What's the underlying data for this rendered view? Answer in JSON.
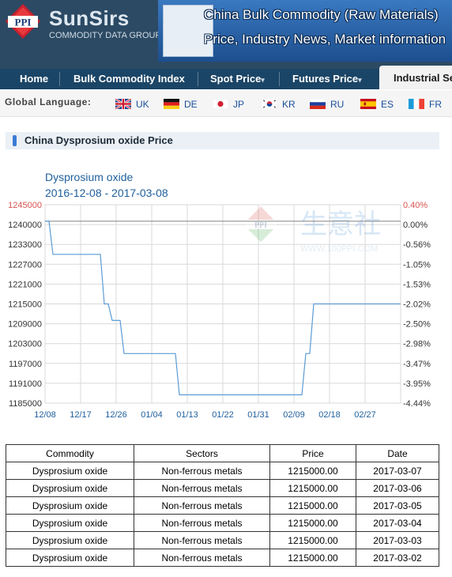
{
  "header": {
    "logo_text": "PPI",
    "brand": "SunSirs",
    "brand_sub": "COMMODITY DATA GROUP",
    "banner_lines": [
      "China Bulk Commodity (Raw Materials)",
      "Price, Industry News, Market information"
    ]
  },
  "nav": {
    "items": [
      {
        "label": "Home",
        "caret": ""
      },
      {
        "label": "Bulk Commodity Index",
        "caret": ""
      },
      {
        "label": "Spot Price",
        "caret": "▾"
      },
      {
        "label": "Futures Price",
        "caret": "▾"
      }
    ],
    "active": "Industrial Se"
  },
  "languages": {
    "title": "Global Language:",
    "items": [
      {
        "code": "UK",
        "flag": "uk-flag-icon"
      },
      {
        "code": "DE",
        "flag": "germany-flag-icon"
      },
      {
        "code": "JP",
        "flag": "japan-flag-icon"
      },
      {
        "code": "KR",
        "flag": "korea-flag-icon"
      },
      {
        "code": "RU",
        "flag": "russia-flag-icon"
      },
      {
        "code": "ES",
        "flag": "spain-flag-icon"
      },
      {
        "code": "FR",
        "flag": "france-flag-icon"
      }
    ]
  },
  "section": {
    "title": "China Dysprosium oxide Price"
  },
  "watermark": {
    "brand_cn": "生意社",
    "url": "WWW.100PPI.COM"
  },
  "chart_data": {
    "type": "line",
    "title": "Dysprosium oxide",
    "subtitle": "2016-12-08 - 2017-03-08",
    "x_ticks": [
      "12/08",
      "12/17",
      "12/26",
      "01/04",
      "01/13",
      "01/22",
      "01/31",
      "02/09",
      "02/18",
      "02/27"
    ],
    "y_ticks_left": [
      "1245000",
      "1240000",
      "1233000",
      "1227000",
      "1221000",
      "1215000",
      "1209000",
      "1203000",
      "1197000",
      "1191000",
      "1185000"
    ],
    "y_ticks_right": [
      "0.40%",
      "0.00%",
      "-0.56%",
      "-1.05%",
      "-1.53%",
      "-2.02%",
      "-2.50%",
      "-2.98%",
      "-3.47%",
      "-3.95%",
      "-4.44%"
    ],
    "ylim": [
      1185000,
      1245000
    ],
    "reference_value": 1240000,
    "grid": true,
    "colors": {
      "line": "#5b9bd5",
      "axis_text": "#1f5f9c",
      "top_tick": "#d9534f",
      "reference": "#808080",
      "grid": "#d9d9d9"
    },
    "series": [
      {
        "x": [
          "2016-12-08",
          "2016-12-09",
          "2016-12-10",
          "2016-12-11",
          "2016-12-12",
          "2016-12-13",
          "2016-12-14",
          "2016-12-15",
          "2016-12-16",
          "2016-12-17",
          "2016-12-18",
          "2016-12-19",
          "2016-12-20",
          "2016-12-21",
          "2016-12-22",
          "2016-12-23",
          "2016-12-24",
          "2016-12-25",
          "2016-12-26",
          "2016-12-27",
          "2016-12-28",
          "2016-12-29",
          "2016-12-30",
          "2016-12-31",
          "2017-01-01",
          "2017-01-02",
          "2017-01-03",
          "2017-01-04",
          "2017-01-05",
          "2017-01-06",
          "2017-01-07",
          "2017-01-08",
          "2017-01-09",
          "2017-01-10",
          "2017-01-11",
          "2017-01-12",
          "2017-01-13",
          "2017-01-14",
          "2017-01-15",
          "2017-01-16",
          "2017-01-17",
          "2017-01-18",
          "2017-01-19",
          "2017-01-20",
          "2017-01-21",
          "2017-01-22",
          "2017-01-23",
          "2017-01-24",
          "2017-01-25",
          "2017-01-26",
          "2017-01-27",
          "2017-01-28",
          "2017-01-29",
          "2017-01-30",
          "2017-01-31",
          "2017-02-01",
          "2017-02-02",
          "2017-02-03",
          "2017-02-04",
          "2017-02-05",
          "2017-02-06",
          "2017-02-07",
          "2017-02-08",
          "2017-02-09",
          "2017-02-10",
          "2017-02-11",
          "2017-02-12",
          "2017-02-13",
          "2017-02-14",
          "2017-02-15",
          "2017-02-16",
          "2017-02-17",
          "2017-02-18",
          "2017-02-19",
          "2017-02-20",
          "2017-02-21",
          "2017-02-22",
          "2017-02-23",
          "2017-02-24",
          "2017-02-25",
          "2017-02-26",
          "2017-02-27",
          "2017-02-28",
          "2017-03-01",
          "2017-03-02",
          "2017-03-03",
          "2017-03-04",
          "2017-03-05",
          "2017-03-06",
          "2017-03-07",
          "2017-03-08"
        ],
        "values": [
          1240000,
          1240000,
          1230000,
          1230000,
          1230000,
          1230000,
          1230000,
          1230000,
          1230000,
          1230000,
          1230000,
          1230000,
          1230000,
          1230000,
          1230000,
          1215000,
          1215000,
          1210000,
          1210000,
          1210000,
          1200000,
          1200000,
          1200000,
          1200000,
          1200000,
          1200000,
          1200000,
          1200000,
          1200000,
          1200000,
          1200000,
          1200000,
          1200000,
          1200000,
          1187500,
          1187500,
          1187500,
          1187500,
          1187500,
          1187500,
          1187500,
          1187500,
          1187500,
          1187500,
          1187500,
          1187500,
          1187500,
          1187500,
          1187500,
          1187500,
          1187500,
          1187500,
          1187500,
          1187500,
          1187500,
          1187500,
          1187500,
          1187500,
          1187500,
          1187500,
          1187500,
          1187500,
          1187500,
          1187500,
          1187500,
          1187500,
          1200000,
          1200000,
          1215000,
          1215000,
          1215000,
          1215000,
          1215000,
          1215000,
          1215000,
          1215000,
          1215000,
          1215000,
          1215000,
          1215000,
          1215000,
          1215000,
          1215000,
          1215000,
          1215000,
          1215000,
          1215000,
          1215000,
          1215000,
          1215000,
          1215000
        ]
      }
    ]
  },
  "table": {
    "headers": [
      "Commodity",
      "Sectors",
      "Price",
      "Date"
    ],
    "rows": [
      [
        "Dysprosium oxide",
        "Non-ferrous metals",
        "1215000.00",
        "2017-03-07"
      ],
      [
        "Dysprosium oxide",
        "Non-ferrous metals",
        "1215000.00",
        "2017-03-06"
      ],
      [
        "Dysprosium oxide",
        "Non-ferrous metals",
        "1215000.00",
        "2017-03-05"
      ],
      [
        "Dysprosium oxide",
        "Non-ferrous metals",
        "1215000.00",
        "2017-03-04"
      ],
      [
        "Dysprosium oxide",
        "Non-ferrous metals",
        "1215000.00",
        "2017-03-03"
      ],
      [
        "Dysprosium oxide",
        "Non-ferrous metals",
        "1215000.00",
        "2017-03-02"
      ]
    ]
  }
}
